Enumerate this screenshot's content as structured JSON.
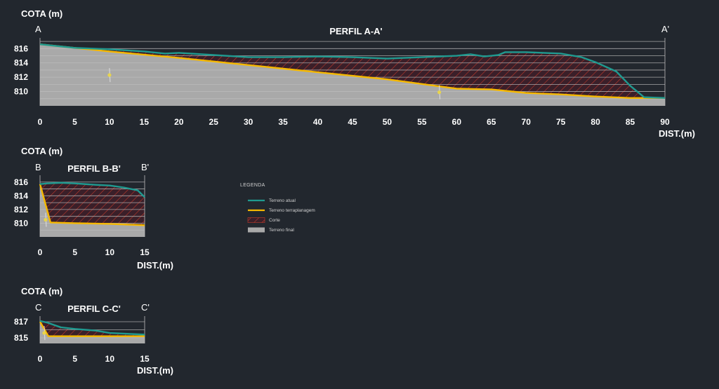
{
  "colors": {
    "background": "#22272e",
    "terreno_atual": "#1f9a90",
    "terraplanagem": "#f5b800",
    "corte": "#c0392b",
    "terreno_final": "#a9a9a9",
    "grid": "#bdbdbd",
    "marker": "#e8d44d"
  },
  "legend": {
    "title": "LEGENDA",
    "items": [
      {
        "label": "Terreno atual",
        "kind": "line",
        "color": "#1f9a90"
      },
      {
        "label": "Terreno terraplanagem",
        "kind": "line",
        "color": "#f5b800"
      },
      {
        "label": "Corte",
        "kind": "hatch",
        "color": "#c0392b"
      },
      {
        "label": "Terreno final",
        "kind": "fill",
        "color": "#a9a9a9"
      }
    ]
  },
  "chart_data": [
    {
      "type": "area",
      "title": "PERFIL A-A'",
      "start_label": "A",
      "end_label": "A'",
      "ylabel": "COTA (m)",
      "xlabel": "DIST.(m)",
      "xlim": [
        0,
        90
      ],
      "ylim": [
        808,
        817.5
      ],
      "x_ticks": [
        0,
        5,
        10,
        15,
        20,
        25,
        30,
        35,
        40,
        45,
        50,
        55,
        60,
        65,
        70,
        75,
        80,
        85,
        90
      ],
      "y_ticks": [
        810,
        812,
        814,
        816
      ],
      "grid_lines": [
        809,
        810,
        811,
        812,
        813,
        814,
        815,
        816,
        817
      ],
      "series": [
        {
          "name": "Terreno atual",
          "x": [
            0,
            5,
            10,
            15,
            18,
            20,
            25,
            30,
            35,
            40,
            45,
            50,
            55,
            60,
            62,
            64,
            65,
            66,
            67,
            70,
            75,
            78,
            80,
            83,
            85,
            87,
            90
          ],
          "y": [
            816.6,
            816.1,
            815.9,
            815.6,
            815.3,
            815.4,
            815.1,
            814.8,
            814.8,
            814.9,
            814.8,
            814.6,
            814.8,
            815.0,
            815.2,
            814.9,
            815.0,
            815.1,
            815.5,
            815.5,
            815.3,
            814.8,
            814.1,
            812.8,
            810.8,
            809.2,
            809.1
          ]
        },
        {
          "name": "Terreno terraplanagem",
          "x": [
            0,
            10,
            20,
            30,
            40,
            50,
            60,
            65,
            70,
            75,
            80,
            85,
            87,
            90
          ],
          "y": [
            816.6,
            815.6,
            814.7,
            813.7,
            812.7,
            811.7,
            810.4,
            810.3,
            809.8,
            809.6,
            809.3,
            809.1,
            809.1,
            809.1
          ]
        }
      ],
      "markers": [
        {
          "x": 10,
          "y": 812.3
        },
        {
          "x": 57.5,
          "y": 809.9
        }
      ]
    },
    {
      "type": "area",
      "title": "PERFIL B-B'",
      "start_label": "B",
      "end_label": "B'",
      "ylabel": "COTA (m)",
      "xlabel": "DIST.(m)",
      "xlim": [
        0,
        15
      ],
      "ylim": [
        808,
        817
      ],
      "x_ticks": [
        0,
        5,
        10,
        15
      ],
      "y_ticks": [
        810,
        812,
        814,
        816
      ],
      "grid_lines": [
        809,
        810,
        811,
        812,
        813,
        814,
        815,
        816
      ],
      "series": [
        {
          "name": "Terreno atual",
          "x": [
            0,
            1,
            3,
            5,
            8,
            10,
            12,
            14,
            15
          ],
          "y": [
            815.7,
            815.8,
            815.9,
            815.8,
            815.6,
            815.5,
            815.2,
            814.8,
            813.8
          ]
        },
        {
          "name": "Terreno terraplanagem",
          "x": [
            0,
            1.5,
            5,
            10,
            15
          ],
          "y": [
            815.7,
            810.1,
            810.0,
            809.9,
            809.7
          ]
        }
      ],
      "markers": [
        {
          "x": 0.8,
          "y": 810.5
        }
      ]
    },
    {
      "type": "area",
      "title": "PERFIL C-C'",
      "start_label": "C",
      "end_label": "C'",
      "ylabel": "COTA (m)",
      "xlabel": "DIST.(m)",
      "xlim": [
        0,
        15
      ],
      "ylim": [
        814.3,
        817.7
      ],
      "x_ticks": [
        0,
        5,
        10,
        15
      ],
      "y_ticks": [
        815,
        817
      ],
      "grid_lines": [
        815,
        816,
        817
      ],
      "series": [
        {
          "name": "Terreno atual",
          "x": [
            0,
            1,
            2,
            3,
            5,
            8,
            10,
            15
          ],
          "y": [
            817.1,
            816.9,
            816.6,
            816.3,
            816.1,
            815.9,
            815.6,
            815.4
          ]
        },
        {
          "name": "Terreno terraplanagem",
          "x": [
            0,
            1.2,
            5,
            10,
            15
          ],
          "y": [
            817.0,
            815.2,
            815.2,
            815.2,
            815.2
          ]
        }
      ],
      "markers": [
        {
          "x": 0.6,
          "y": 815.6
        }
      ]
    }
  ]
}
